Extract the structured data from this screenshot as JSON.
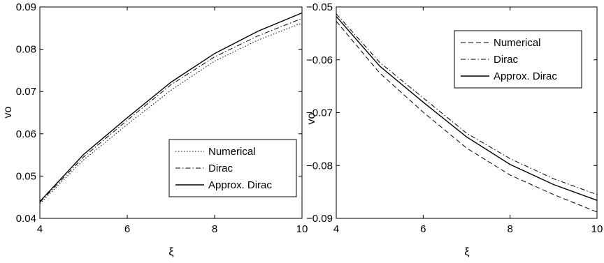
{
  "chart_data": [
    {
      "type": "line",
      "xlabel": "ξ",
      "ylabel": "vo",
      "xlim": [
        4,
        10
      ],
      "ylim": [
        0.04,
        0.09
      ],
      "xticks": [
        4,
        6,
        8,
        10
      ],
      "xtick_labels": [
        "4",
        "6",
        "8",
        "10"
      ],
      "yticks": [
        0.04,
        0.05,
        0.06,
        0.07,
        0.08,
        0.09
      ],
      "ytick_labels": [
        "0.04",
        "0.05",
        "0.06",
        "0.07",
        "0.08",
        "0.09"
      ],
      "grid": false,
      "legend_position": "lower-right",
      "x": [
        4,
        5,
        6,
        7,
        8,
        9,
        10
      ],
      "series": [
        {
          "name": "Numerical",
          "style": "dotted",
          "values": [
            0.0435,
            0.0538,
            0.0622,
            0.0703,
            0.0772,
            0.0822,
            0.0862
          ]
        },
        {
          "name": "Dirac",
          "style": "dashdot",
          "values": [
            0.0438,
            0.0545,
            0.0632,
            0.0716,
            0.0782,
            0.0832,
            0.0873
          ]
        },
        {
          "name": "Approx. Dirac",
          "style": "solid",
          "values": [
            0.044,
            0.0551,
            0.0638,
            0.0722,
            0.079,
            0.0843,
            0.0886
          ]
        }
      ]
    },
    {
      "type": "line",
      "xlabel": "ξ",
      "ylabel": "vo",
      "xlim": [
        4,
        10
      ],
      "ylim": [
        -0.09,
        -0.05
      ],
      "xticks": [
        4,
        6,
        8,
        10
      ],
      "xtick_labels": [
        "4",
        "6",
        "8",
        "10"
      ],
      "yticks": [
        -0.09,
        -0.08,
        -0.07,
        -0.06,
        -0.05
      ],
      "ytick_labels": [
        "−0.09",
        "−0.08",
        "−0.07",
        "−0.06",
        "−0.05"
      ],
      "grid": false,
      "legend_position": "top-right",
      "x": [
        4,
        5,
        6,
        7,
        8,
        9,
        10
      ],
      "series": [
        {
          "name": "Numerical",
          "style": "dashed",
          "values": [
            -0.0527,
            -0.0625,
            -0.0699,
            -0.0767,
            -0.0818,
            -0.0855,
            -0.0888
          ]
        },
        {
          "name": "Dirac",
          "style": "dashdot",
          "values": [
            -0.0513,
            -0.0605,
            -0.0672,
            -0.0739,
            -0.0787,
            -0.0825,
            -0.0855
          ]
        },
        {
          "name": "Approx. Dirac",
          "style": "solid",
          "values": [
            -0.0518,
            -0.0612,
            -0.068,
            -0.0746,
            -0.0798,
            -0.0836,
            -0.0866
          ]
        }
      ]
    }
  ]
}
